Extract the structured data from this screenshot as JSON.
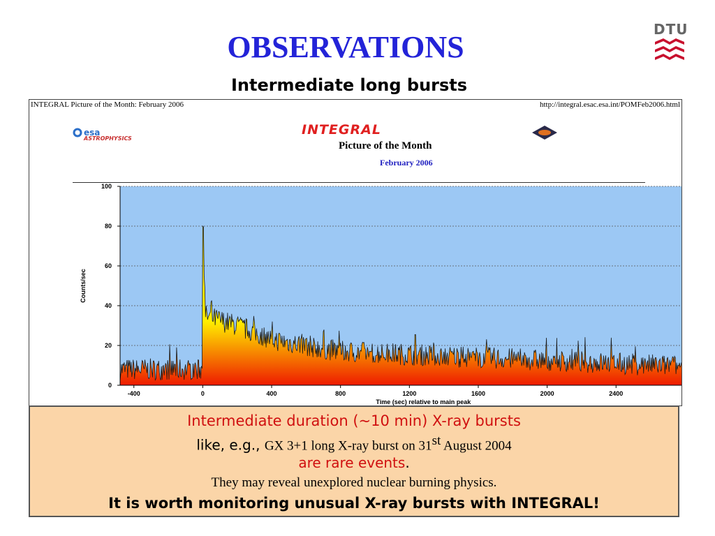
{
  "slide": {
    "title": "OBSERVATIONS",
    "subtitle": "Intermediate long bursts",
    "logo_text": "DTU"
  },
  "panel": {
    "header_left": "INTEGRAL Picture of the Month: February 2006",
    "header_right": "http://integral.esac.esa.int/POMFeb2006.html",
    "esa_logo": "esa",
    "esa_sub": "ASTROPHYSICS",
    "integral_title": "INTEGRAL",
    "potm": "Picture of the Month",
    "potm_date": "February 2006"
  },
  "chart_data": {
    "type": "area",
    "xlabel": "Time (sec) relative to  main peak",
    "ylabel": "Counts/sec",
    "xlim": [
      -480,
      2780
    ],
    "ylim": [
      0,
      100
    ],
    "xticks": [
      -400,
      0,
      400,
      800,
      1200,
      1600,
      2000,
      2400
    ],
    "yticks": [
      0,
      20,
      40,
      60,
      80,
      100
    ],
    "grid": true,
    "colors": {
      "background": "#9cc8f4",
      "fill_low": "#ee1a00",
      "fill_high": "#ffee00",
      "line": "#1a1a1a"
    },
    "description_points": {
      "pre_burst_level": 8,
      "peak": {
        "x": 0,
        "y": 80
      },
      "post_peak_level_0_200s": 30,
      "level_400s": 23,
      "level_800s": 17,
      "level_1600s": 14,
      "level_2400s": 11
    }
  },
  "textbox": {
    "line1": "Intermediate duration (~10 min) X-ray bursts",
    "line2_a": "like, e.g., ",
    "line2_b": "GX 3+1 long X-ray burst on 31",
    "line2_sup": "st",
    "line2_c": " August 2004",
    "line3_a": "are rare events",
    "line3_b": ".",
    "line4": "They may reveal unexplored nuclear burning physics.",
    "line5": "It is worth monitoring unusual X-ray bursts with INTEGRAL!"
  }
}
